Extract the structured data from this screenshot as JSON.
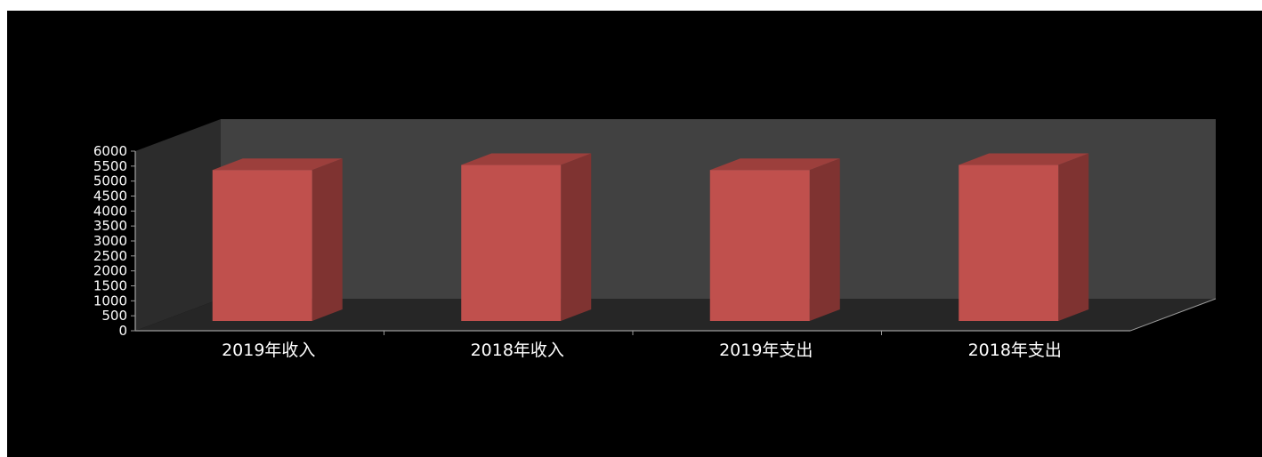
{
  "chart_data": {
    "type": "bar",
    "style": "3d-column",
    "categories": [
      "2019年收入",
      "2018年收入",
      "2019年支出",
      "2018年支出"
    ],
    "values": [
      5390,
      5570,
      5390,
      5570
    ],
    "ylim": [
      0,
      6000
    ],
    "yticks": [
      "0",
      "500",
      "1000",
      "1500",
      "2000",
      "2500",
      "3000",
      "3500",
      "4000",
      "4500",
      "5000",
      "5500",
      "6000"
    ],
    "title": "",
    "xlabel": "",
    "ylabel": "",
    "legend": "none",
    "grid": false
  },
  "colors": {
    "background": "#000000",
    "back_wall": "#414141",
    "side_wall": "#2c2c2c",
    "floor": "#262626",
    "bar_front": "#c0504d",
    "bar_side": "#7f3331",
    "bar_top": "#9c3f3c",
    "axis": "#9a9a9a",
    "text": "#ffffff"
  }
}
